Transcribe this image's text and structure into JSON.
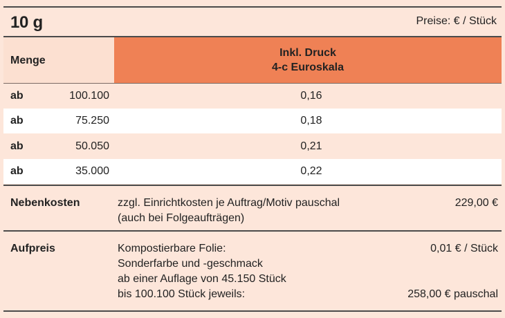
{
  "header": {
    "title": "10 g",
    "currency_note": "Preise: € / Stück"
  },
  "table": {
    "col_quantity": "Menge",
    "col_print_line1": "Inkl. Druck",
    "col_print_line2": "4-c Euroskala",
    "rows": [
      {
        "prefix": "ab",
        "quantity": "100.100",
        "price": "0,16"
      },
      {
        "prefix": "ab",
        "quantity": "75.250",
        "price": "0,18"
      },
      {
        "prefix": "ab",
        "quantity": "50.050",
        "price": "0,21"
      },
      {
        "prefix": "ab",
        "quantity": "35.000",
        "price": "0,22"
      }
    ]
  },
  "nebenkosten": {
    "label": "Nebenkosten",
    "line1": "zzgl. Einrichtkosten je Auftrag/Motiv pauschal",
    "line2": "(auch bei Folgeaufträgen)",
    "amount": "229,00 €"
  },
  "aufpreis": {
    "label": "Aufpreis",
    "line1": "Kompostierbare Folie:",
    "line2": "Sonderfarbe und -geschmack",
    "line3": "ab einer Auflage von 45.150 Stück",
    "line4": "bis 100.100 Stück jeweils:",
    "amount1": "0,01 € / Stück",
    "amount2": "258,00 € pauschal"
  },
  "colors": {
    "background": "#fde6da",
    "header_accent": "#ef8155",
    "row_alt": "#ffffff",
    "rule": "#4a4a4a"
  }
}
